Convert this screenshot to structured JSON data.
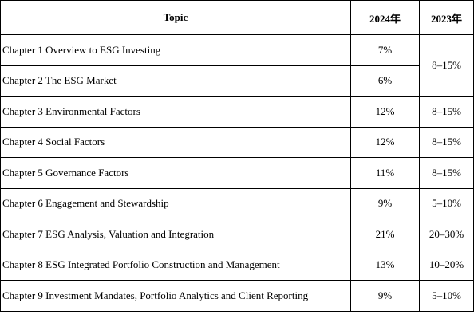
{
  "table": {
    "headers": {
      "topic": "Topic",
      "y2024": "2024年",
      "y2023": "2023年"
    },
    "rows": [
      {
        "topic": "Chapter 1 Overview to ESG Investing",
        "y2024": "7%",
        "y2023": "8–15%"
      },
      {
        "topic": "Chapter 2 The ESG Market",
        "y2024": "6%",
        "y2023": ""
      },
      {
        "topic": "Chapter 3 Environmental Factors",
        "y2024": "12%",
        "y2023": "8–15%"
      },
      {
        "topic": "Chapter 4 Social Factors",
        "y2024": "12%",
        "y2023": "8–15%"
      },
      {
        "topic": "Chapter 5 Governance Factors",
        "y2024": "11%",
        "y2023": "8–15%"
      },
      {
        "topic": "Chapter 6 Engagement and Stewardship",
        "y2024": "9%",
        "y2023": "5–10%"
      },
      {
        "topic": "Chapter 7 ESG Analysis, Valuation and Integration",
        "y2024": "21%",
        "y2023": "20–30%"
      },
      {
        "topic": "Chapter 8 ESG Integrated Portfolio Construction and Management",
        "y2024": "13%",
        "y2023": "10–20%"
      },
      {
        "topic": "Chapter 9 Investment Mandates, Portfolio Analytics and Client Reporting",
        "y2024": "9%",
        "y2023": "5–10%"
      }
    ]
  }
}
